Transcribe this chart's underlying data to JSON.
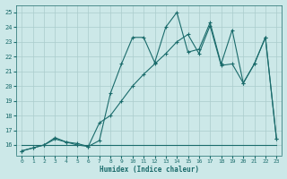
{
  "bg_color": "#cce8e8",
  "grid_color": "#aacccc",
  "line_color": "#1a6b6b",
  "xlim": [
    -0.5,
    23.5
  ],
  "ylim": [
    15.3,
    25.5
  ],
  "yticks": [
    16,
    17,
    18,
    19,
    20,
    21,
    22,
    23,
    24,
    25
  ],
  "xticks": [
    0,
    1,
    2,
    3,
    4,
    5,
    6,
    7,
    8,
    9,
    10,
    11,
    12,
    13,
    14,
    15,
    16,
    17,
    18,
    19,
    20,
    21,
    22,
    23
  ],
  "xlabel": "Humidex (Indice chaleur)",
  "line1_x": [
    0,
    1,
    2,
    3,
    4,
    5,
    6,
    7,
    8,
    9,
    10,
    11,
    12,
    13,
    14,
    15,
    16,
    17,
    18,
    19,
    20,
    21,
    22,
    23
  ],
  "line1_y": [
    15.6,
    15.8,
    16.0,
    16.5,
    16.2,
    16.1,
    15.9,
    16.3,
    19.5,
    21.5,
    23.3,
    23.3,
    21.6,
    24.0,
    25.0,
    22.3,
    22.5,
    24.3,
    21.5,
    23.8,
    20.2,
    21.5,
    23.3,
    16.4
  ],
  "line2_x": [
    0,
    1,
    2,
    3,
    4,
    5,
    6,
    7,
    8,
    9,
    10,
    11,
    12,
    13,
    14,
    15,
    16,
    17,
    18,
    19,
    20,
    21,
    22,
    23
  ],
  "line2_y": [
    15.6,
    15.8,
    16.0,
    16.4,
    16.2,
    16.0,
    15.9,
    17.5,
    18.0,
    19.0,
    20.0,
    20.8,
    21.5,
    22.2,
    23.0,
    23.5,
    22.2,
    24.1,
    21.4,
    21.5,
    20.2,
    21.5,
    23.3,
    16.4
  ],
  "line3_x": [
    0,
    23
  ],
  "line3_y": [
    16.0,
    16.0
  ]
}
